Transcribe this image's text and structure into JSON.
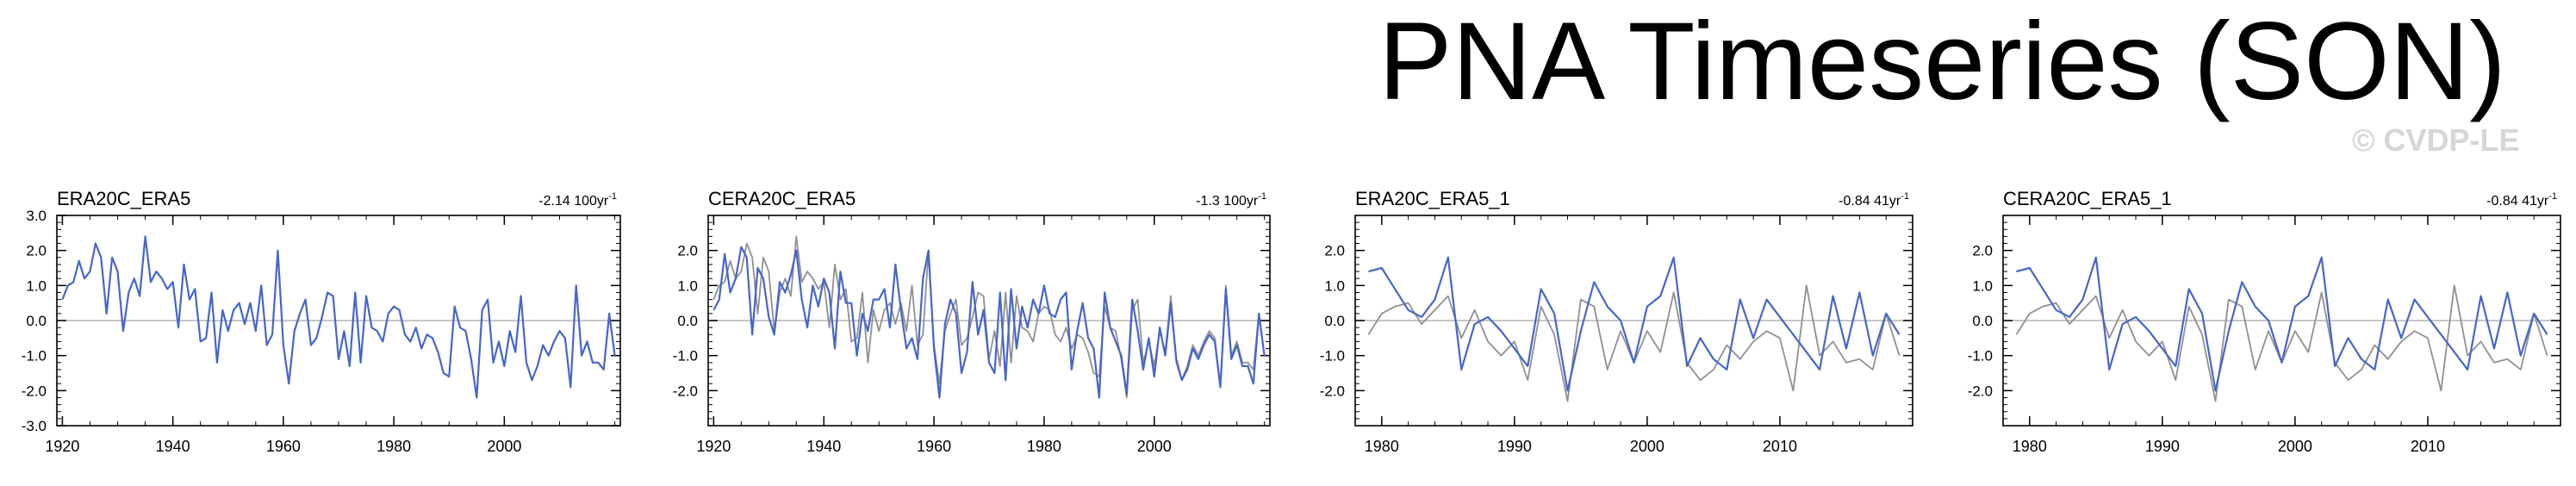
{
  "page": {
    "title": "PNA Timeseries (SON)",
    "watermark": "© CVDP-LE"
  },
  "colors": {
    "primary": "#4466cc",
    "secondary": "#909090",
    "zero": "#b4b4b4"
  },
  "chart_data": [
    {
      "type": "line",
      "title": "ERA20C_ERA5",
      "trend": "-2.14 100yr",
      "trend_sup": "-1",
      "xlim": [
        1919,
        2021
      ],
      "ylim": [
        -3.0,
        3.0
      ],
      "xticks": [
        1920,
        1940,
        1960,
        1980,
        2000
      ],
      "yticks": [
        3.0,
        2.0,
        1.0,
        0.0,
        -1.0,
        -2.0,
        -3.0
      ],
      "ytick_labels": [
        "3.0",
        "2.0",
        "1.0",
        "0.0",
        "-1.0",
        "-2.0",
        "-3.0"
      ],
      "series": [
        {
          "name": "ERA20C_ERA5",
          "color": "#4466cc",
          "x_start": 1920,
          "values": [
            0.6,
            1.0,
            1.1,
            1.7,
            1.2,
            1.4,
            2.2,
            1.8,
            0.2,
            1.8,
            1.4,
            -0.3,
            0.8,
            1.2,
            0.7,
            2.4,
            1.1,
            1.4,
            1.2,
            0.9,
            1.1,
            -0.2,
            1.6,
            0.6,
            0.9,
            -0.6,
            -0.5,
            0.8,
            -1.2,
            0.3,
            -0.3,
            0.3,
            0.5,
            -0.1,
            0.5,
            -0.3,
            1.0,
            -0.7,
            -0.4,
            2.0,
            -0.7,
            -1.8,
            -0.3,
            0.2,
            0.6,
            -0.7,
            -0.5,
            0.1,
            0.8,
            0.7,
            -1.1,
            -0.3,
            -1.3,
            0.8,
            -1.2,
            0.7,
            -0.2,
            -0.3,
            -0.6,
            0.2,
            0.4,
            0.3,
            -0.4,
            -0.6,
            -0.2,
            -0.8,
            -0.4,
            -0.5,
            -0.9,
            -1.5,
            -1.6,
            0.4,
            -0.2,
            -0.3,
            -1.1,
            -2.2,
            0.3,
            0.6,
            -1.2,
            -0.6,
            -1.3,
            -0.3,
            -0.9,
            0.7,
            -1.2,
            -1.7,
            -1.3,
            -0.7,
            -1.0,
            -0.6,
            -0.3,
            -0.5,
            -1.9,
            1.0,
            -1.0,
            -0.6,
            -1.2,
            -1.2,
            -1.4,
            0.2,
            -1.0
          ]
        }
      ]
    },
    {
      "type": "line",
      "title": "CERA20C_ERA5",
      "trend": "-1.3 100yr",
      "trend_sup": "-1",
      "xlim": [
        1919,
        2021
      ],
      "ylim": [
        -3.0,
        3.0
      ],
      "xticks": [
        1920,
        1940,
        1960,
        1980,
        2000
      ],
      "yticks": [
        2.0,
        1.0,
        0.0,
        -1.0,
        -2.0
      ],
      "ytick_labels": [
        "2.0",
        "1.0",
        "0.0",
        "-1.0",
        "-2.0"
      ],
      "series": [
        {
          "name": "CERA20C_ERA5",
          "color": "#4466cc",
          "x_start": 1920,
          "values": [
            0.3,
            0.6,
            1.9,
            0.8,
            1.2,
            2.1,
            1.8,
            -0.4,
            1.5,
            1.2,
            0.1,
            -0.4,
            1.1,
            0.8,
            1.3,
            2.0,
            0.6,
            -0.2,
            1.0,
            0.4,
            1.2,
            0.8,
            -0.8,
            1.4,
            0.5,
            0.5,
            -1.0,
            0.2,
            -0.3,
            0.6,
            0.6,
            0.9,
            -0.2,
            1.6,
            0.3,
            -0.8,
            -0.5,
            -1.1,
            1.2,
            2.0,
            -0.8,
            -2.2,
            -0.1,
            0.6,
            0.2,
            -1.5,
            -0.9,
            1.1,
            -0.4,
            0.3,
            -1.2,
            -1.5,
            0.8,
            -1.7,
            0.9,
            -0.8,
            0.4,
            -0.2,
            0.6,
            0.2,
            1.0,
            0.2,
            0.1,
            0.6,
            0.8,
            -1.4,
            -0.3,
            0.5,
            -0.5,
            -0.8,
            -2.2,
            0.8,
            -0.2,
            -0.6,
            -1.0,
            -2.1,
            0.6,
            -0.3,
            -1.4,
            -0.5,
            -1.6,
            -0.2,
            -1.0,
            0.5,
            -1.1,
            -1.7,
            -1.4,
            -0.8,
            -1.1,
            -0.7,
            -0.4,
            -0.6,
            -1.9,
            0.9,
            -1.1,
            -0.7,
            -1.3,
            -1.3,
            -1.8,
            0.2,
            -1.0
          ]
        },
        {
          "name": "ERA20C_ERA5",
          "color": "#909090",
          "x_start": 1920,
          "values": [
            0.6,
            1.0,
            1.1,
            1.7,
            1.2,
            1.4,
            2.2,
            1.8,
            0.2,
            1.8,
            1.4,
            -0.3,
            0.8,
            1.2,
            0.7,
            2.4,
            1.1,
            1.4,
            1.2,
            0.9,
            1.1,
            -0.2,
            1.6,
            0.6,
            0.9,
            -0.6,
            -0.5,
            0.8,
            -1.2,
            0.3,
            -0.3,
            0.3,
            0.5,
            -0.1,
            0.5,
            -0.3,
            1.0,
            -0.7,
            -0.4,
            2.0,
            -0.7,
            -1.8,
            -0.3,
            0.2,
            0.6,
            -0.7,
            -0.5,
            0.1,
            0.8,
            0.7,
            -1.1,
            -0.3,
            -1.3,
            0.8,
            -1.2,
            0.7,
            -0.2,
            -0.3,
            -0.6,
            0.2,
            0.4,
            0.3,
            -0.4,
            -0.6,
            -0.2,
            -0.8,
            -0.4,
            -0.5,
            -0.9,
            -1.5,
            -1.6,
            0.4,
            -0.2,
            -0.3,
            -1.1,
            -2.2,
            0.3,
            0.6,
            -1.2,
            -0.6,
            -1.3,
            -0.3,
            -0.9,
            0.7,
            -1.2,
            -1.7,
            -1.3,
            -0.7,
            -1.0,
            -0.6,
            -0.3,
            -0.5,
            -1.9,
            1.0,
            -1.0,
            -0.6,
            -1.2,
            -1.2,
            -1.4,
            0.2,
            -1.0
          ]
        }
      ]
    },
    {
      "type": "line",
      "title": "ERA20C_ERA5_1",
      "trend": "-0.84 41yr",
      "trend_sup": "-1",
      "xlim": [
        1978,
        2020
      ],
      "ylim": [
        -3.0,
        3.0
      ],
      "xticks": [
        1980,
        1990,
        2000,
        2010
      ],
      "yticks": [
        2.0,
        1.0,
        0.0,
        -1.0,
        -2.0
      ],
      "ytick_labels": [
        "2.0",
        "1.0",
        "0.0",
        "-1.0",
        "-2.0"
      ],
      "series": [
        {
          "name": "ERA5",
          "color": "#4466cc",
          "x_start": 1979,
          "values": [
            1.4,
            1.5,
            0.9,
            0.3,
            0.1,
            0.6,
            1.8,
            -1.4,
            -0.1,
            0.1,
            -0.3,
            -0.8,
            -1.3,
            0.9,
            0.2,
            -2.0,
            -0.3,
            1.1,
            0.4,
            0.0,
            -1.2,
            0.4,
            0.7,
            1.8,
            -1.3,
            -0.5,
            -1.1,
            -1.4,
            0.6,
            -0.5,
            0.6,
            0.1,
            -0.4,
            -0.9,
            -1.4,
            0.7,
            -0.8,
            0.8,
            -1.0,
            0.2,
            -0.4
          ]
        },
        {
          "name": "ERA20C",
          "color": "#909090",
          "x_start": 1979,
          "values": [
            -0.4,
            0.2,
            0.4,
            0.5,
            -0.1,
            0.3,
            0.7,
            -0.5,
            0.3,
            -0.6,
            -1.0,
            -0.6,
            -1.7,
            0.4,
            -0.4,
            -2.3,
            0.6,
            0.4,
            -1.4,
            -0.3,
            -1.2,
            -0.3,
            -0.9,
            0.8,
            -1.2,
            -1.7,
            -1.4,
            -0.7,
            -1.1,
            -0.6,
            -0.3,
            -0.5,
            -2.0,
            1.0,
            -1.0,
            -0.6,
            -1.2,
            -1.1,
            -1.4,
            0.2,
            -1.0
          ]
        }
      ]
    },
    {
      "type": "line",
      "title": "CERA20C_ERA5_1",
      "trend": "-0.84 41yr",
      "trend_sup": "-1",
      "xlim": [
        1978,
        2020
      ],
      "ylim": [
        -3.0,
        3.0
      ],
      "xticks": [
        1980,
        1990,
        2000,
        2010
      ],
      "yticks": [
        2.0,
        1.0,
        0.0,
        -1.0,
        -2.0
      ],
      "ytick_labels": [
        "2.0",
        "1.0",
        "0.0",
        "-1.0",
        "-2.0"
      ],
      "series": [
        {
          "name": "ERA5",
          "color": "#4466cc",
          "x_start": 1979,
          "values": [
            1.4,
            1.5,
            0.9,
            0.3,
            0.1,
            0.6,
            1.8,
            -1.4,
            -0.1,
            0.1,
            -0.3,
            -0.8,
            -1.3,
            0.9,
            0.2,
            -2.0,
            -0.3,
            1.1,
            0.4,
            0.0,
            -1.2,
            0.4,
            0.7,
            1.8,
            -1.3,
            -0.5,
            -1.1,
            -1.4,
            0.6,
            -0.5,
            0.6,
            0.1,
            -0.4,
            -0.9,
            -1.4,
            0.7,
            -0.8,
            0.8,
            -1.0,
            0.2,
            -0.4
          ]
        },
        {
          "name": "CERA20C",
          "color": "#909090",
          "x_start": 1979,
          "values": [
            -0.4,
            0.2,
            0.4,
            0.5,
            -0.1,
            0.3,
            0.7,
            -0.5,
            0.3,
            -0.6,
            -1.0,
            -0.6,
            -1.7,
            0.4,
            -0.4,
            -2.3,
            0.6,
            0.4,
            -1.4,
            -0.3,
            -1.2,
            -0.3,
            -0.9,
            0.8,
            -1.2,
            -1.7,
            -1.4,
            -0.7,
            -1.1,
            -0.6,
            -0.3,
            -0.5,
            -2.0,
            1.0,
            -1.0,
            -0.6,
            -1.2,
            -1.1,
            -1.4,
            0.2,
            -1.0
          ]
        }
      ]
    }
  ]
}
